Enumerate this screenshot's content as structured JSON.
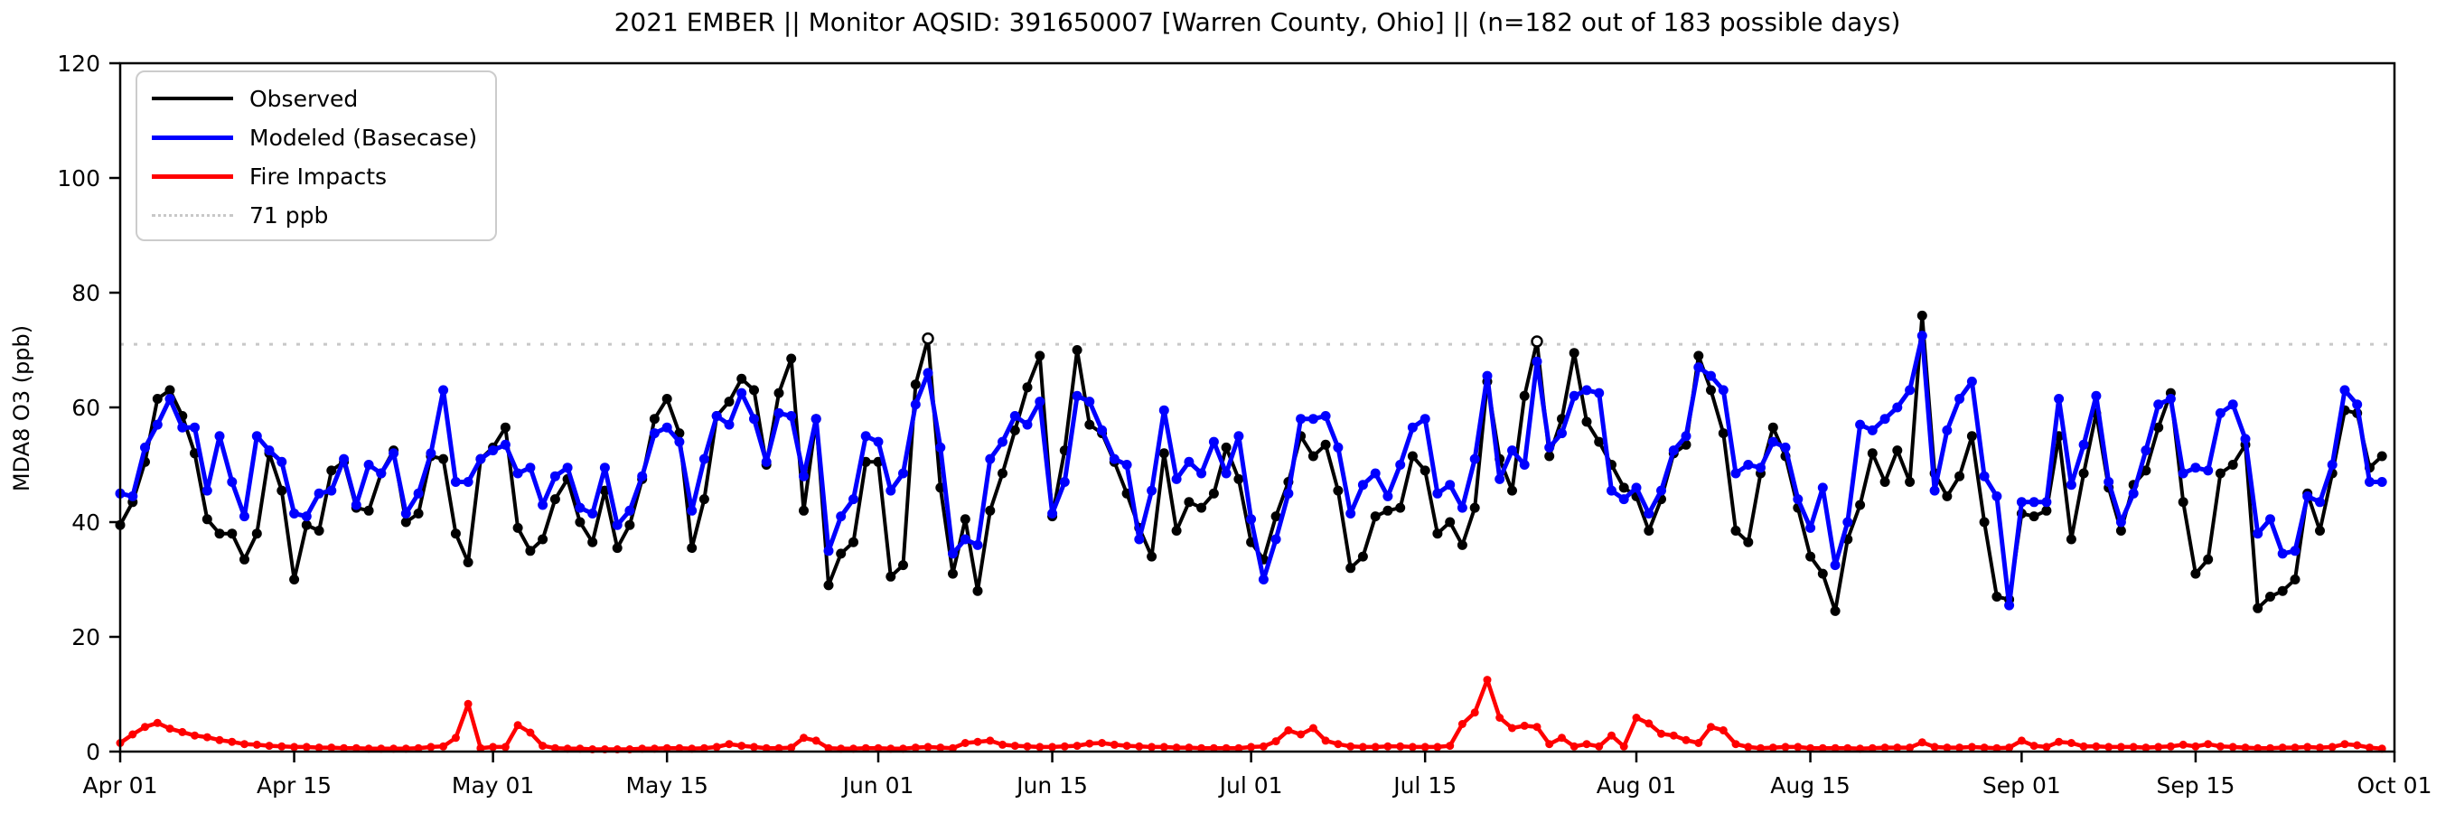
{
  "title": "2021 EMBER || Monitor AQSID: 391650007 [Warren County, Ohio] || (n=182 out of 183 possible days)",
  "axes": {
    "ylabel": "MDA8 O3 (ppb)",
    "ylim": [
      0,
      120
    ],
    "yticks": [
      0,
      20,
      40,
      60,
      80,
      100,
      120
    ],
    "xtick_labels": [
      "Apr 01",
      "Apr 15",
      "May 01",
      "May 15",
      "Jun 01",
      "Jun 15",
      "Jul 01",
      "Jul 15",
      "Aug 01",
      "Aug 15",
      "Sep 01",
      "Sep 15",
      "Oct 01"
    ],
    "xtick_days": [
      0,
      14,
      30,
      44,
      61,
      75,
      91,
      105,
      122,
      136,
      153,
      167,
      183
    ]
  },
  "legend": {
    "items": [
      {
        "label": "Observed",
        "color": "#000000",
        "style": "solid",
        "thickness": 4
      },
      {
        "label": "Modeled (Basecase)",
        "color": "#0000ff",
        "style": "solid",
        "thickness": 5
      },
      {
        "label": "Fire Impacts",
        "color": "#ff0000",
        "style": "solid",
        "thickness": 5
      },
      {
        "label": "71 ppb",
        "color": "#c8c8c8",
        "style": "dotted",
        "thickness": 3
      }
    ]
  },
  "threshold": {
    "value_ppb": 71,
    "color": "#c8c8c8"
  },
  "chart_data": {
    "type": "line",
    "x_start_date": "Apr 01",
    "x_end_date": "Sep 30",
    "n_days": 183,
    "grid": "off",
    "legend_position": "upper left",
    "open_marker_indices": [
      65,
      114
    ],
    "series": [
      {
        "name": "Observed",
        "color": "#000000",
        "values": [
          39.5,
          43.5,
          50.5,
          61.5,
          63,
          58.5,
          52,
          40.5,
          38,
          38,
          33.5,
          38,
          52,
          45.5,
          30,
          39.5,
          38.5,
          49,
          50.5,
          42.5,
          42,
          48.5,
          52.5,
          40,
          41.5,
          51.5,
          51,
          38,
          33,
          51,
          53,
          56.5,
          39,
          35,
          37,
          44,
          47.5,
          40,
          36.5,
          45.5,
          35.5,
          39.5,
          47.5,
          58,
          61.5,
          55.5,
          35.5,
          44,
          58.5,
          61,
          65,
          63,
          50,
          62.5,
          68.5,
          42,
          58,
          29,
          34.5,
          36.5,
          50.5,
          50.5,
          30.5,
          32.5,
          64,
          72,
          46,
          31,
          40.5,
          28,
          42,
          48.5,
          56,
          63.5,
          69,
          41,
          52.5,
          70,
          57,
          55.5,
          50.5,
          45,
          39,
          34,
          52,
          38.5,
          43.5,
          42.5,
          45,
          53,
          47.5,
          36.5,
          33.5,
          41,
          47,
          55,
          51.5,
          53.5,
          45.5,
          32,
          34,
          41,
          42,
          42.5,
          51.5,
          49,
          38,
          40,
          36,
          42.5,
          64.5,
          51,
          45.5,
          62,
          71.5,
          51.5,
          58,
          69.5,
          57.5,
          54,
          50,
          46,
          44.5,
          38.5,
          44,
          52,
          53.5,
          69,
          63,
          55.5,
          38.5,
          36.5,
          48.5,
          56.5,
          51.5,
          42.5,
          34,
          31,
          24.5,
          37,
          43,
          52,
          47,
          52.5,
          47,
          76,
          48.5,
          44.5,
          48,
          55,
          40,
          27,
          26.5,
          41.5,
          41,
          42,
          55,
          37,
          48.5,
          59,
          46,
          38.5,
          46.5,
          49,
          56.5,
          62.5,
          43.5,
          31,
          33.5,
          48.5,
          50,
          53.5,
          25,
          27,
          28,
          30,
          45,
          38.5,
          48.5,
          59.5,
          59,
          49.5,
          51.5
        ]
      },
      {
        "name": "Modeled (Basecase)",
        "color": "#0000ff",
        "values": [
          45,
          44.5,
          53,
          57,
          61.5,
          56.5,
          56.5,
          45.5,
          55,
          47,
          41,
          55,
          52.5,
          50.5,
          41.5,
          41,
          45,
          45.5,
          51,
          43,
          50,
          48.5,
          52,
          41.5,
          45,
          52,
          63,
          47,
          47,
          51,
          52.5,
          53.5,
          48.5,
          49.5,
          43,
          48,
          49.5,
          42.5,
          41.5,
          49.5,
          39.5,
          42,
          48,
          55.5,
          56.5,
          54,
          42,
          51,
          58.5,
          57,
          62.5,
          58,
          50.5,
          59,
          58.5,
          48,
          58,
          35,
          41,
          44,
          55,
          54,
          45.5,
          48.5,
          60.5,
          66,
          53,
          34.5,
          37,
          36,
          51,
          54,
          58.5,
          57,
          61,
          41.5,
          47,
          62,
          61,
          56,
          51,
          50,
          37,
          45.5,
          59.5,
          47.5,
          50.5,
          48.5,
          54,
          48.5,
          55,
          40.5,
          30,
          37,
          45,
          58,
          58,
          58.5,
          53,
          41.5,
          46.5,
          48.5,
          44.5,
          50,
          56.5,
          58,
          45,
          46.5,
          42.5,
          51,
          65.5,
          47.5,
          52.5,
          50,
          68,
          53,
          55.5,
          62,
          63,
          62.5,
          45.5,
          44,
          46,
          41.5,
          45.5,
          52.5,
          55,
          67,
          65.5,
          63,
          48.5,
          50,
          49.5,
          54,
          53,
          44,
          39,
          46,
          32.5,
          40,
          57,
          56,
          58,
          60,
          63,
          72.5,
          45.5,
          56,
          61.5,
          64.5,
          48,
          44.5,
          25.5,
          43.5,
          43.5,
          43.5,
          61.5,
          46.5,
          53.5,
          62,
          47,
          40,
          45,
          52.5,
          60.5,
          61.5,
          48.5,
          49.5,
          49,
          59,
          60.5,
          54.5,
          38,
          40.5,
          34.5,
          35,
          44.5,
          43.5,
          50,
          63,
          60.5,
          47,
          47
        ]
      },
      {
        "name": "Fire Impacts",
        "color": "#ff0000",
        "values": [
          1.5,
          3,
          4.3,
          5,
          4,
          3.4,
          2.8,
          2.5,
          2,
          1.7,
          1.3,
          1.2,
          1,
          0.9,
          0.8,
          0.8,
          0.7,
          0.7,
          0.6,
          0.6,
          0.5,
          0.5,
          0.5,
          0.5,
          0.6,
          0.8,
          0.9,
          2.4,
          8.3,
          0.6,
          0.8,
          0.8,
          4.6,
          3.3,
          1,
          0.6,
          0.5,
          0.5,
          0.4,
          0.4,
          0.4,
          0.4,
          0.5,
          0.5,
          0.6,
          0.6,
          0.5,
          0.6,
          0.8,
          1.3,
          1,
          0.8,
          0.6,
          0.6,
          0.7,
          2.4,
          1.9,
          0.6,
          0.5,
          0.5,
          0.6,
          0.6,
          0.5,
          0.5,
          0.7,
          0.8,
          0.7,
          0.6,
          1.5,
          1.7,
          1.9,
          1.2,
          1,
          0.9,
          0.8,
          0.8,
          0.9,
          1,
          1.4,
          1.5,
          1.2,
          1,
          0.9,
          0.8,
          0.8,
          0.7,
          0.7,
          0.6,
          0.6,
          0.6,
          0.6,
          0.8,
          0.9,
          1.8,
          3.7,
          3,
          4.1,
          1.9,
          1.3,
          0.9,
          0.8,
          0.8,
          0.9,
          0.9,
          0.8,
          0.8,
          0.8,
          1,
          4.8,
          6.8,
          12.5,
          5.9,
          4.1,
          4.5,
          4.3,
          1.3,
          2.4,
          0.9,
          1.3,
          0.9,
          2.8,
          0.9,
          5.9,
          4.9,
          3.1,
          2.8,
          2,
          1.5,
          4.3,
          3.7,
          1.3,
          0.8,
          0.6,
          0.7,
          0.8,
          0.8,
          0.6,
          0.6,
          0.6,
          0.6,
          0.5,
          0.6,
          0.7,
          0.7,
          0.7,
          1.6,
          0.8,
          0.7,
          0.7,
          0.8,
          0.7,
          0.6,
          0.7,
          1.9,
          1,
          0.8,
          1.7,
          1.5,
          0.9,
          0.9,
          0.8,
          0.8,
          0.8,
          0.7,
          0.8,
          0.9,
          1.2,
          0.9,
          1.3,
          0.9,
          0.8,
          0.7,
          0.6,
          0.6,
          0.7,
          0.7,
          0.8,
          0.7,
          0.8,
          1.3,
          1.1,
          0.7,
          0.5
        ]
      }
    ]
  }
}
